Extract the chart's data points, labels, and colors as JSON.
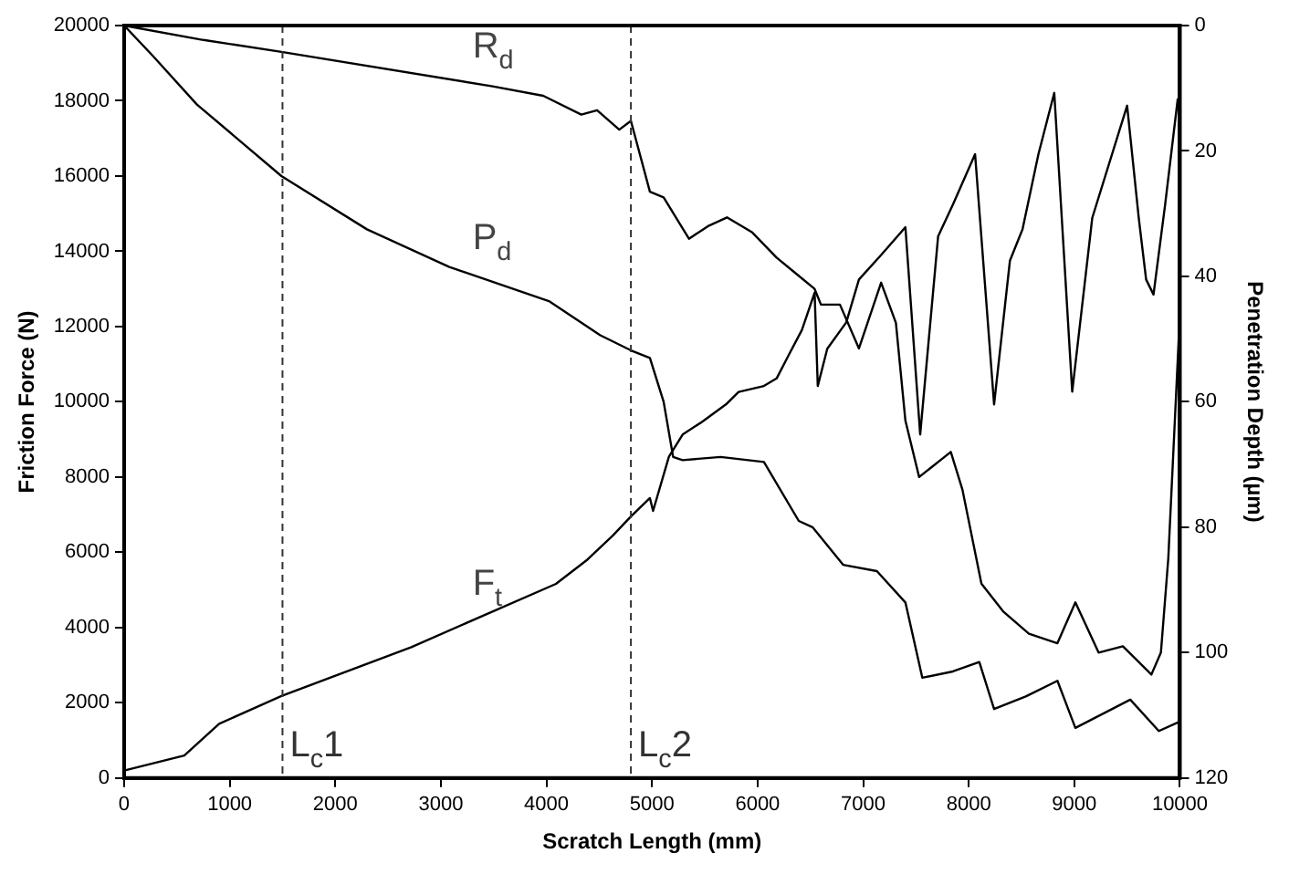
{
  "chart_data": {
    "type": "line",
    "xlabel": "Scratch Length (mm)",
    "ylabel": "Friction Force (N)",
    "y2label": "Penetration Depth (µm)",
    "xlim": [
      0,
      10000
    ],
    "xticks": [
      0,
      1000,
      2000,
      3000,
      4000,
      5000,
      6000,
      7000,
      8000,
      9000,
      10000
    ],
    "ylim": [
      0,
      20000
    ],
    "yticks": [
      0,
      2000,
      4000,
      6000,
      8000,
      10000,
      12000,
      14000,
      16000,
      18000,
      20000
    ],
    "y2lim": [
      120,
      0
    ],
    "y2ticks": [
      0,
      20,
      40,
      60,
      80,
      100,
      120
    ],
    "grid": false,
    "legend": false,
    "marker": "none",
    "line_style": "solid",
    "ref_lines": [
      {
        "axis": "x",
        "value": 1500,
        "label": "L$_{c}$1",
        "line_style": "dashed",
        "color": "#333333"
      },
      {
        "axis": "x",
        "value": 4800,
        "label": "L$_{c}$2",
        "line_style": "dashed",
        "color": "#333333"
      }
    ],
    "series": [
      {
        "name": "F$_{t}$",
        "color": "#000000",
        "x": [
          0,
          570,
          900,
          1490,
          2720,
          4090,
          4390,
          4630,
          4800,
          4980,
          5010,
          5160,
          5290,
          5470,
          5700,
          5820,
          6060,
          6180,
          6300,
          6420,
          6540,
          6570,
          6660,
          6840,
          6960,
          7170,
          7400,
          7540,
          7710,
          7850,
          8060,
          8240,
          8390,
          8510,
          8660,
          8810,
          8980,
          9170,
          9500,
          9610,
          9680,
          9750,
          9860,
          9980
        ],
        "values": [
          200,
          600,
          1440,
          2180,
          3480,
          5160,
          5810,
          6450,
          6950,
          7440,
          7100,
          8540,
          9130,
          9460,
          9930,
          10260,
          10420,
          10620,
          11270,
          11910,
          12900,
          10420,
          11410,
          12110,
          13250,
          13900,
          14640,
          9130,
          14400,
          15240,
          16580,
          9930,
          13750,
          14590,
          16580,
          18210,
          10270,
          14890,
          17870,
          14890,
          13250,
          12850,
          15240,
          18060
        ]
      },
      {
        "name": "P$_{d}$",
        "color": "#000000",
        "axis": "y2",
        "x": [
          0,
          270,
          690,
          1490,
          2300,
          3080,
          4030,
          4510,
          4800,
          4980,
          5110,
          5200,
          5290,
          5650,
          6060,
          6390,
          6520,
          6810,
          7130,
          7400,
          7560,
          7850,
          8100,
          8240,
          8540,
          8840,
          9010,
          9530,
          9800,
          10000
        ],
        "values": [
          0,
          4.8,
          12.6,
          24,
          32.5,
          38.5,
          44,
          49.4,
          51.8,
          53,
          60,
          68.8,
          69.3,
          68.8,
          69.6,
          79,
          80,
          86,
          87,
          92,
          104,
          103,
          101.5,
          109,
          107,
          104.5,
          112,
          107.5,
          112.5,
          111
        ]
      },
      {
        "name": "R$_{d}$",
        "color": "#000000",
        "axis": "y2",
        "x": [
          0,
          750,
          1490,
          3490,
          3970,
          4330,
          4480,
          4690,
          4800,
          4980,
          5110,
          5350,
          5530,
          5710,
          5950,
          6180,
          6360,
          6540,
          6600,
          6780,
          6960,
          7170,
          7310,
          7400,
          7530,
          7830,
          7940,
          8120,
          8330,
          8570,
          8840,
          9010,
          9230,
          9460,
          9730,
          9820,
          9890,
          10000
        ],
        "values": [
          0,
          2.3,
          4.2,
          9.7,
          11.2,
          14.2,
          13.5,
          16.6,
          15.2,
          26.5,
          27.4,
          34,
          32,
          30.6,
          33,
          37,
          39.5,
          42,
          44.5,
          44.5,
          51.5,
          41,
          47.4,
          63,
          72,
          68,
          74,
          89,
          93.5,
          97,
          98.5,
          92,
          100,
          99,
          103.5,
          100,
          85,
          46
        ]
      }
    ]
  }
}
